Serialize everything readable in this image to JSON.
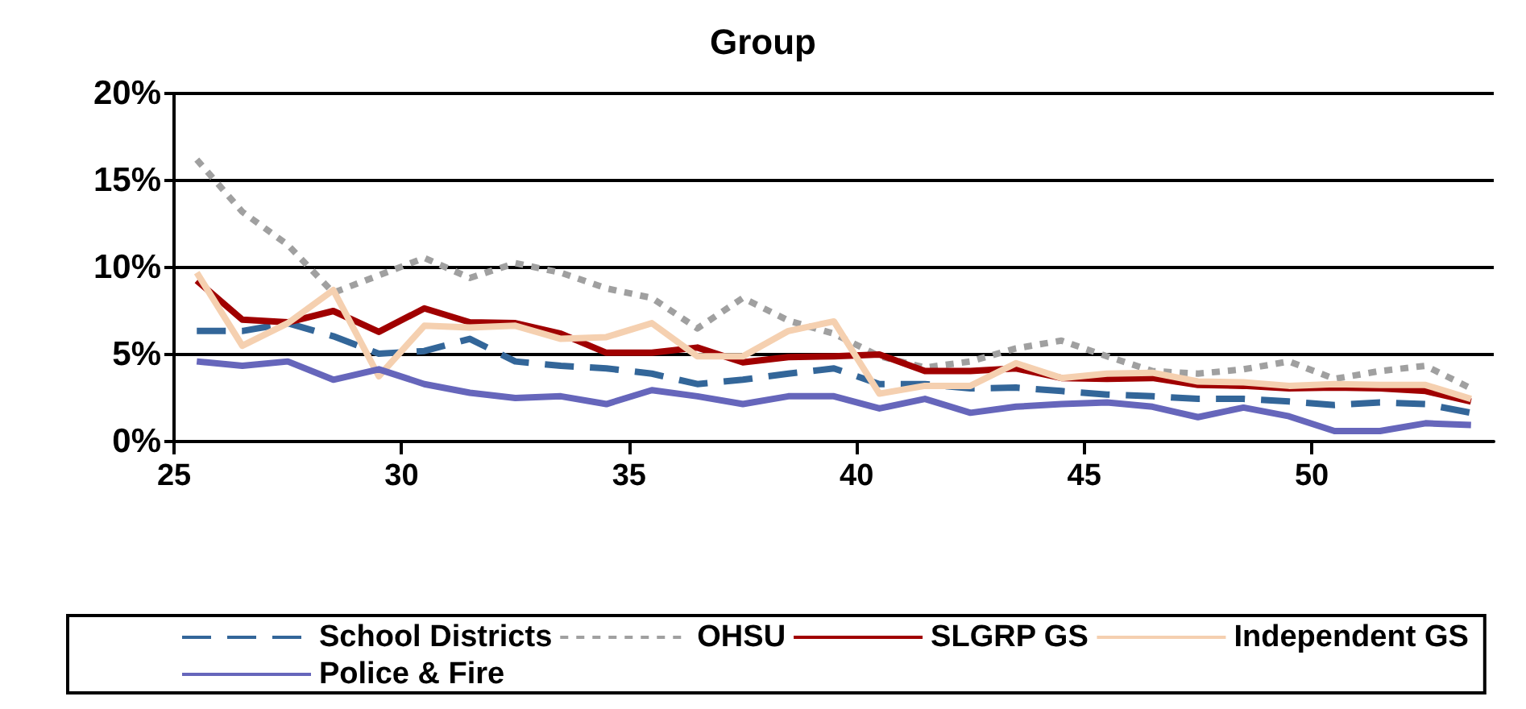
{
  "chart_data": {
    "type": "line",
    "title": "Group",
    "x": [
      25.5,
      26.5,
      27.5,
      28.5,
      29.5,
      30.5,
      31.5,
      32.5,
      33.5,
      34.5,
      35.5,
      36.5,
      37.5,
      38.5,
      39.5,
      40.5,
      41.5,
      42.5,
      43.5,
      44.5,
      45.5,
      46.5,
      47.5,
      48.5,
      49.5,
      50.5,
      51.5,
      52.5,
      53.5
    ],
    "series": [
      {
        "name": "School Districts",
        "color": "#336699",
        "line_style": "dashed",
        "values": [
          6.35,
          6.35,
          6.8,
          6.05,
          5.05,
          5.2,
          5.9,
          4.6,
          4.35,
          4.2,
          3.9,
          3.3,
          3.55,
          3.9,
          4.2,
          3.3,
          3.3,
          3.05,
          3.1,
          2.9,
          2.7,
          2.6,
          2.45,
          2.45,
          2.3,
          2.1,
          2.25,
          2.15,
          1.65
        ]
      },
      {
        "name": "OHSU",
        "color": "#a0a0a0",
        "line_style": "dotted",
        "values": [
          16.2,
          13.2,
          11.3,
          8.55,
          9.55,
          10.55,
          9.4,
          10.25,
          9.7,
          8.8,
          8.25,
          6.5,
          8.25,
          6.95,
          6.2,
          4.9,
          4.25,
          4.6,
          5.35,
          5.8,
          4.9,
          4.05,
          3.9,
          4.15,
          4.6,
          3.6,
          4.05,
          4.35,
          3.05
        ]
      },
      {
        "name": "SLGRP GS",
        "color": "#a00000",
        "line_style": "solid",
        "values": [
          9.25,
          7.0,
          6.85,
          7.5,
          6.3,
          7.65,
          6.85,
          6.8,
          6.2,
          5.1,
          5.1,
          5.4,
          4.55,
          4.85,
          4.9,
          5.0,
          4.05,
          4.05,
          4.2,
          3.65,
          3.6,
          3.65,
          3.25,
          3.2,
          3.05,
          3.1,
          3.05,
          2.9,
          2.3
        ]
      },
      {
        "name": "Independent GS",
        "color": "#f5d0b0",
        "line_style": "solid",
        "values": [
          9.7,
          5.5,
          6.8,
          8.7,
          3.75,
          6.65,
          6.55,
          6.65,
          5.9,
          6.0,
          6.8,
          4.9,
          4.9,
          6.35,
          6.9,
          2.75,
          3.2,
          3.2,
          4.5,
          3.65,
          3.9,
          3.95,
          3.45,
          3.4,
          3.2,
          3.3,
          3.25,
          3.25,
          2.45
        ]
      },
      {
        "name": "Police & Fire",
        "color": "#6666bb",
        "line_style": "solid",
        "values": [
          4.6,
          4.35,
          4.6,
          3.55,
          4.15,
          3.3,
          2.8,
          2.5,
          2.6,
          2.15,
          2.95,
          2.6,
          2.15,
          2.6,
          2.6,
          1.9,
          2.45,
          1.65,
          2.0,
          2.15,
          2.25,
          2.0,
          1.4,
          1.95,
          1.45,
          0.6,
          0.6,
          1.05,
          0.95
        ]
      }
    ],
    "xlim": [
      25,
      54
    ],
    "xticks": [
      25,
      30,
      35,
      40,
      45,
      50
    ],
    "ylim": [
      0,
      20
    ],
    "yticks": [
      {
        "value": 0,
        "label": "0%"
      },
      {
        "value": 5,
        "label": "5%"
      },
      {
        "value": 10,
        "label": "10%"
      },
      {
        "value": 15,
        "label": "15%"
      },
      {
        "value": 20,
        "label": "20%"
      }
    ],
    "grid": "y",
    "legend": "bottom",
    "marker": "none"
  }
}
